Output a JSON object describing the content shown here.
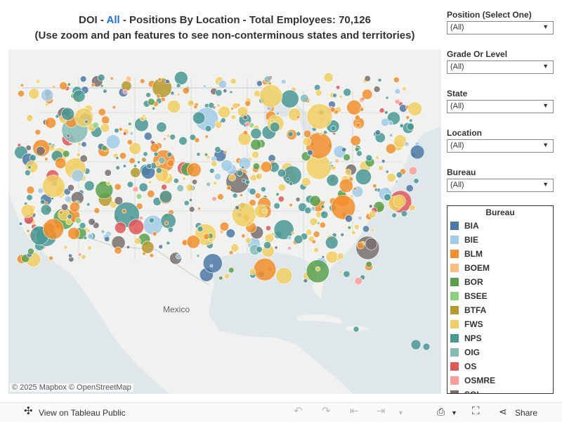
{
  "title": {
    "prefix": "DOI - ",
    "highlight": "All",
    "suffix": " - Positions By Location - Total Employees: 70,126",
    "line2": "(Use zoom and pan features to see non-conterminous states and territories)"
  },
  "map": {
    "label_mexico": "Mexico",
    "attribution": "© 2025 Mapbox  © OpenStreetMap"
  },
  "filters": [
    {
      "label": "Position (Select One)",
      "value": "(All)"
    },
    {
      "label": "Grade Or Level",
      "value": "(All)"
    },
    {
      "label": "State",
      "value": "(All)"
    },
    {
      "label": "Location",
      "value": "(All)"
    },
    {
      "label": "Bureau",
      "value": "(All)"
    }
  ],
  "legend": {
    "title": "Bureau",
    "items": [
      {
        "label": "BIA",
        "color": "#4e79a7"
      },
      {
        "label": "BIE",
        "color": "#a0cbe8"
      },
      {
        "label": "BLM",
        "color": "#f28e2b"
      },
      {
        "label": "BOEM",
        "color": "#ffbe7d"
      },
      {
        "label": "BOR",
        "color": "#59a14f"
      },
      {
        "label": "BSEE",
        "color": "#8cd17d"
      },
      {
        "label": "BTFA",
        "color": "#b6992d"
      },
      {
        "label": "FWS",
        "color": "#f1ce63"
      },
      {
        "label": "NPS",
        "color": "#499894"
      },
      {
        "label": "OIG",
        "color": "#86bcb6"
      },
      {
        "label": "OS",
        "color": "#e15759"
      },
      {
        "label": "OSMRE",
        "color": "#ff9d9a"
      },
      {
        "label": "SOL",
        "color": "#79706e"
      }
    ]
  },
  "toolbar": {
    "view_label": "View on Tableau Public",
    "share_label": "Share"
  }
}
